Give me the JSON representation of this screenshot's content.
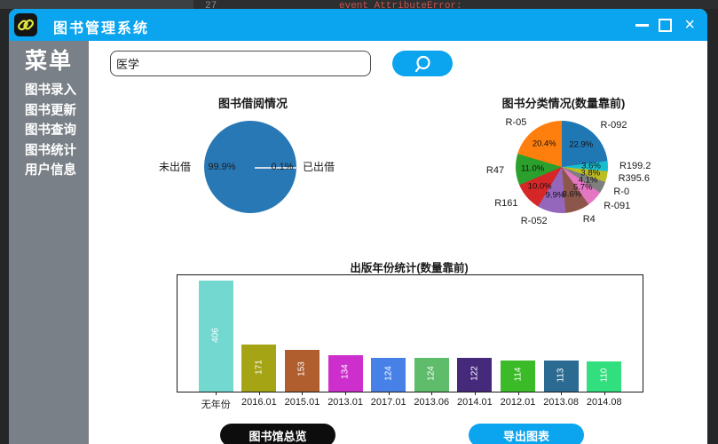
{
  "desktop": {
    "line_number": "27",
    "editor_text": "event AttributeError:"
  },
  "titlebar": {
    "title": "图书管理系统",
    "icons": {
      "close": "×"
    }
  },
  "sidebar": {
    "title": "菜单",
    "items": [
      "图书录入",
      "图书更新",
      "图书查询",
      "图书统计",
      "用户信息"
    ]
  },
  "search": {
    "value": "医学"
  },
  "footer": {
    "overview_label": "图书馆总览",
    "export_label": "导出图表"
  },
  "theme": {
    "titlebar_blue": "#0aa4ef",
    "sidebar_gray": "#7a8087",
    "button_black": "#0d0d0d",
    "window_bg": "#ffffff",
    "desktop_bg": "#242628"
  },
  "chart_data": [
    {
      "type": "pie",
      "title": "图书借阅情况",
      "labels": [
        "未出借",
        "已出借"
      ],
      "values": [
        99.9,
        0.1
      ],
      "pct_labels": [
        "99.9%",
        "0.1%"
      ],
      "colors": [
        "#2878b5",
        "#ff7f0e"
      ],
      "legend_position": "side-labels",
      "note": "single dominant slice; 0.1% wedge appears as thin light line at 3 o'clock"
    },
    {
      "type": "pie",
      "title": "图书分类情况(数量靠前)",
      "labels": [
        "R-092",
        "R199.2",
        "R395.6",
        "R-0",
        "R-091",
        "R4",
        "R-052",
        "R161",
        "R47",
        "R-05"
      ],
      "values": [
        22.9,
        3.6,
        3.8,
        4.1,
        5.7,
        8.6,
        9.9,
        10.0,
        11.0,
        20.4
      ],
      "pct_labels": [
        "22.9%",
        "3.6%",
        "3.8%",
        "4.1%",
        "5.7%",
        "8.6%",
        "9.9%",
        "10.0%",
        "11.0%",
        "20.4%"
      ],
      "colors": [
        "#1f77b4",
        "#17becf",
        "#bcbd22",
        "#7f7f7f",
        "#e377c2",
        "#8c564b",
        "#9467bd",
        "#d62728",
        "#2ca02c",
        "#ff7f0e"
      ],
      "start": "top, clockwise"
    },
    {
      "type": "bar",
      "title": "出版年份统计(数量靠前)",
      "categories": [
        "无年份",
        "2016.01",
        "2015.01",
        "2013.01",
        "2017.01",
        "2013.06",
        "2014.01",
        "2012.01",
        "2013.08",
        "2014.08"
      ],
      "values": [
        406,
        171,
        153,
        134,
        124,
        124,
        122,
        114,
        113,
        110
      ],
      "colors": [
        "#72d8d0",
        "#a4a414",
        "#b05e2e",
        "#cd2fcd",
        "#4781e8",
        "#5ebc6b",
        "#452a7c",
        "#3abb27",
        "#2b6b91",
        "#31df7e"
      ],
      "ylim": [
        0,
        426
      ],
      "value_labels": "white, rotated 90° inside bars",
      "grid": false
    }
  ]
}
